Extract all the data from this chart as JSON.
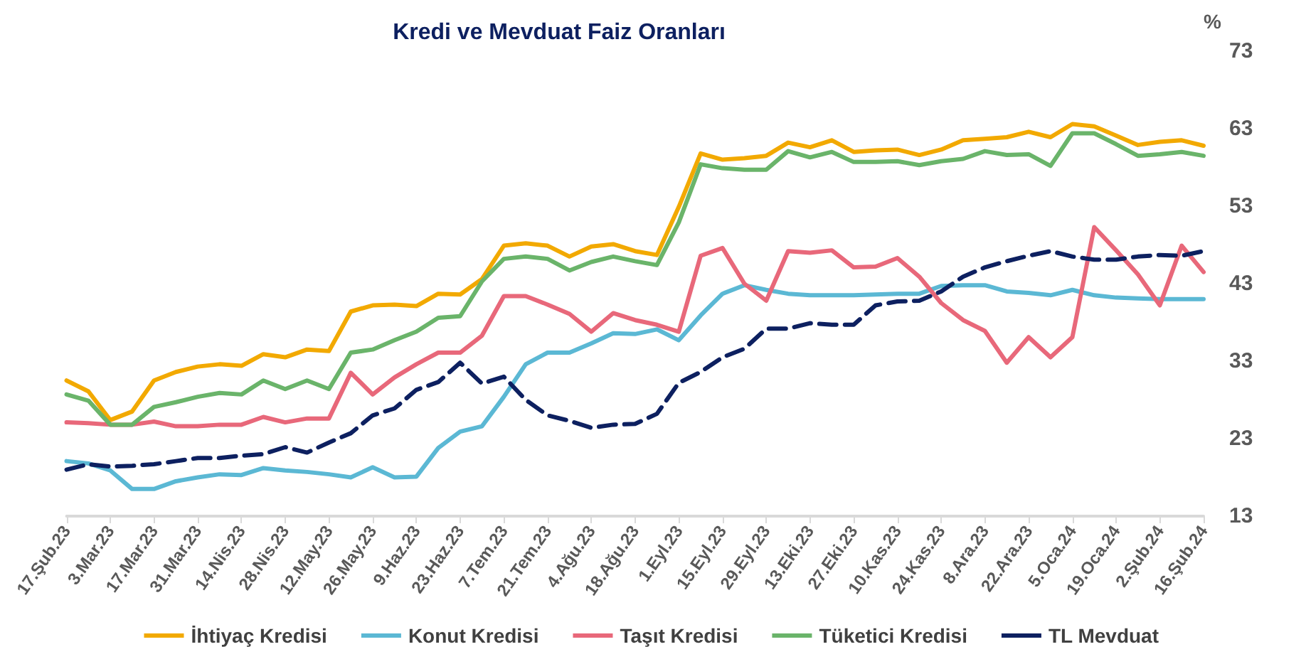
{
  "chart_data": {
    "type": "line",
    "title": "Kredi ve Mevduat Faiz Oranları",
    "ylabel": "%",
    "categories": [
      "17.Şub.23",
      null,
      "3.Mar.23",
      null,
      "17.Mar.23",
      null,
      "31.Mar.23",
      null,
      "14.Nis.23",
      null,
      "28.Nis.23",
      null,
      "12.May.23",
      null,
      "26.May.23",
      null,
      "9.Haz.23",
      null,
      "23.Haz.23",
      null,
      "7.Tem.23",
      null,
      "21.Tem.23",
      null,
      "4.Ağu.23",
      null,
      "18.Ağu.23",
      null,
      "1.Eyl.23",
      null,
      "15.Eyl.23",
      null,
      "29.Eyl.23",
      null,
      "13.Eki.23",
      null,
      "27.Eki.23",
      null,
      "10.Kas.23",
      null,
      "24.Kas.23",
      null,
      "8.Ara.23",
      null,
      "22.Ara.23",
      null,
      "5.Oca.24",
      null,
      "19.Oca.24",
      null,
      "2.Şub.24",
      null,
      "16.Şub.24"
    ],
    "series": [
      {
        "name": "İhtiyaç Kredisi",
        "color": "#f2a900",
        "values": [
          30.5,
          29.1,
          25.4,
          26.5,
          30.5,
          31.6,
          32.3,
          32.6,
          32.4,
          33.9,
          33.5,
          34.5,
          34.3,
          39.4,
          40.2,
          40.3,
          40.1,
          41.7,
          41.6,
          43.6,
          47.9,
          48.2,
          47.9,
          46.5,
          47.8,
          48.1,
          47.2,
          46.7,
          52.9,
          59.8,
          59.0,
          59.2,
          59.5,
          61.2,
          60.6,
          61.5,
          60.0,
          60.2,
          60.3,
          59.6,
          60.3,
          61.5,
          61.7,
          61.9,
          62.6,
          61.9,
          63.6,
          63.3,
          62.1,
          60.9,
          61.3,
          61.5,
          60.8
        ]
      },
      {
        "name": "Konut Kredisi",
        "color": "#5bb8d4",
        "values": [
          20.1,
          19.8,
          18.9,
          16.5,
          16.5,
          17.5,
          18.0,
          18.4,
          18.3,
          19.2,
          18.9,
          18.7,
          18.4,
          18.0,
          19.3,
          18.0,
          18.1,
          21.8,
          23.9,
          24.6,
          28.4,
          32.6,
          34.1,
          34.1,
          35.3,
          36.6,
          36.5,
          37.1,
          35.7,
          38.9,
          41.7,
          42.8,
          42.2,
          41.7,
          41.5,
          41.5,
          41.5,
          41.6,
          41.7,
          41.7,
          42.7,
          42.8,
          42.8,
          42.0,
          41.8,
          41.5,
          42.2,
          41.5,
          41.2,
          41.1,
          41.0,
          41.0,
          41.0
        ]
      },
      {
        "name": "Taşıt Kredisi",
        "color": "#e8687a",
        "values": [
          25.1,
          25.0,
          24.8,
          24.8,
          25.2,
          24.6,
          24.6,
          24.8,
          24.8,
          25.8,
          25.1,
          25.6,
          25.6,
          31.5,
          28.7,
          30.9,
          32.6,
          34.1,
          34.1,
          36.3,
          41.4,
          41.4,
          40.3,
          39.1,
          36.8,
          39.2,
          38.3,
          37.7,
          36.8,
          46.6,
          47.6,
          43.0,
          40.8,
          47.2,
          47.0,
          47.3,
          45.1,
          45.2,
          46.3,
          43.9,
          40.5,
          38.3,
          36.9,
          32.8,
          36.1,
          33.5,
          36.1,
          50.3,
          47.3,
          44.2,
          40.2,
          47.9,
          44.5
        ]
      },
      {
        "name": "Tüketici Kredisi",
        "color": "#6ab46a",
        "values": [
          28.7,
          27.9,
          24.8,
          24.8,
          27.1,
          27.7,
          28.4,
          28.9,
          28.7,
          30.5,
          29.4,
          30.5,
          29.4,
          34.1,
          34.5,
          35.7,
          36.8,
          38.6,
          38.8,
          43.3,
          46.2,
          46.5,
          46.2,
          44.7,
          45.8,
          46.5,
          45.9,
          45.4,
          50.9,
          58.4,
          57.9,
          57.7,
          57.7,
          60.1,
          59.3,
          60.0,
          58.7,
          58.7,
          58.8,
          58.3,
          58.8,
          59.1,
          60.1,
          59.6,
          59.7,
          58.2,
          62.4,
          62.4,
          61.0,
          59.5,
          59.7,
          60.0,
          59.5
        ]
      },
      {
        "name": "TL Mevduat",
        "color": "#0d2060",
        "line_style": "dashed",
        "values": [
          19.0,
          19.7,
          19.4,
          19.5,
          19.7,
          20.1,
          20.5,
          20.5,
          20.8,
          21.0,
          21.9,
          21.2,
          22.5,
          23.7,
          26.0,
          26.9,
          29.3,
          30.3,
          32.8,
          30.1,
          31.0,
          28.0,
          26.0,
          25.3,
          24.4,
          24.8,
          24.9,
          26.2,
          30.2,
          31.6,
          33.5,
          34.6,
          37.2,
          37.2,
          37.9,
          37.7,
          37.7,
          40.2,
          40.7,
          40.8,
          42.0,
          43.9,
          45.1,
          45.9,
          46.6,
          47.2,
          46.5,
          46.1,
          46.1,
          46.5,
          46.7,
          46.6,
          47.2
        ]
      }
    ],
    "ylim": [
      13,
      73
    ],
    "yticks": [
      13,
      23,
      33,
      43,
      53,
      63,
      73
    ],
    "grid": false,
    "legend": "bottom",
    "marker": "none",
    "line_style": "solid"
  }
}
